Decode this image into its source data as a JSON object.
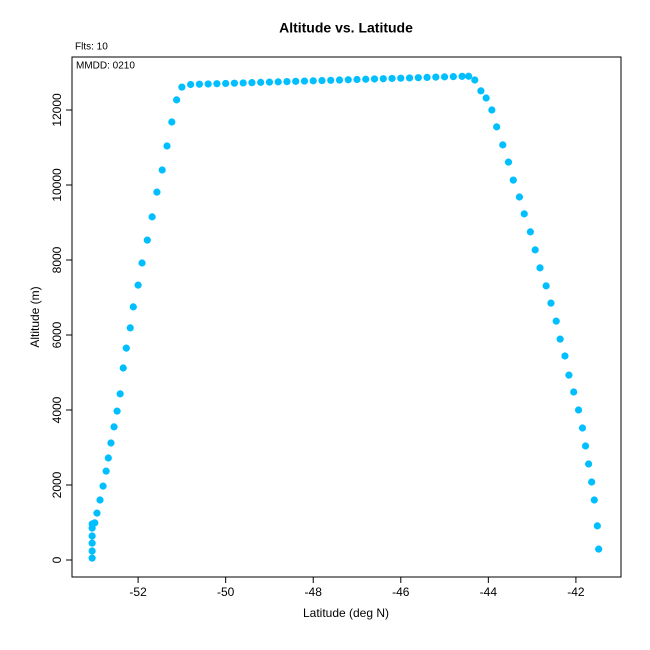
{
  "chart_data": {
    "type": "scatter",
    "title": "Altitude vs. Latitude",
    "subtitle": "Flts: 10",
    "annotation": "MMDD: 0210",
    "xlabel": "Latitude (deg N)",
    "ylabel": "Altitude (m)",
    "color": "#00bfff",
    "grid": false,
    "xlim": [
      -53.51,
      -40.97
    ],
    "ylim": [
      -453,
      13413
    ],
    "xticks": [
      -52,
      -50,
      -48,
      -46,
      -44,
      -42
    ],
    "yticks": [
      0,
      2000,
      4000,
      6000,
      8000,
      10000,
      12000
    ],
    "x": [
      -53.05,
      -53.05,
      -53.05,
      -53.05,
      -53.05,
      -53.05,
      -52.99,
      -52.94,
      -52.87,
      -52.8,
      -52.73,
      -52.68,
      -52.62,
      -52.55,
      -52.48,
      -52.41,
      -52.34,
      -52.27,
      -52.18,
      -52.11,
      -52.0,
      -51.91,
      -51.79,
      -51.68,
      -51.57,
      -51.45,
      -51.34,
      -51.23,
      -51.12,
      -51.0,
      -50.8,
      -50.6,
      -50.4,
      -50.2,
      -50.0,
      -49.8,
      -49.6,
      -49.4,
      -49.2,
      -49.0,
      -48.8,
      -48.6,
      -48.4,
      -48.2,
      -48.0,
      -47.8,
      -47.6,
      -47.4,
      -47.2,
      -47.0,
      -46.8,
      -46.6,
      -46.4,
      -46.2,
      -46.0,
      -45.8,
      -45.6,
      -45.4,
      -45.2,
      -45.0,
      -44.8,
      -44.6,
      -44.45,
      -44.31,
      -44.17,
      -44.05,
      -43.92,
      -43.81,
      -43.67,
      -43.54,
      -43.43,
      -43.29,
      -43.18,
      -43.04,
      -42.93,
      -42.82,
      -42.68,
      -42.57,
      -42.45,
      -42.36,
      -42.25,
      -42.16,
      -42.05,
      -41.94,
      -41.85,
      -41.78,
      -41.71,
      -41.64,
      -41.58,
      -41.51,
      -41.48
    ],
    "y": [
      50,
      240,
      450,
      640,
      850,
      960,
      990,
      1250,
      1600,
      1970,
      2370,
      2720,
      3120,
      3550,
      3970,
      4430,
      5120,
      5650,
      6190,
      6750,
      7330,
      7920,
      8530,
      9150,
      9810,
      10400,
      11040,
      11680,
      12270,
      12610,
      12680,
      12687,
      12694,
      12701,
      12708,
      12715,
      12722,
      12729,
      12736,
      12743,
      12750,
      12757,
      12764,
      12771,
      12778,
      12785,
      12792,
      12799,
      12806,
      12813,
      12820,
      12827,
      12834,
      12841,
      12848,
      12855,
      12862,
      12869,
      12876,
      12883,
      12890,
      12897,
      12900,
      12800,
      12510,
      12320,
      12000,
      11550,
      11070,
      10610,
      10130,
      9680,
      9230,
      8750,
      8270,
      7790,
      7310,
      6850,
      6370,
      5890,
      5440,
      4930,
      4480,
      4000,
      3520,
      3040,
      2560,
      2080,
      1600,
      910,
      290
    ]
  }
}
